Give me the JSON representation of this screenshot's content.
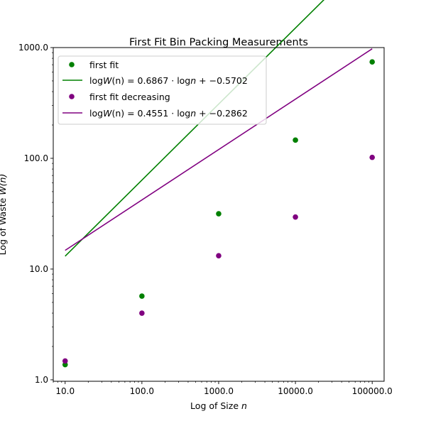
{
  "chart_data": {
    "type": "scatter",
    "title": "First Fit Bin Packing Measurements",
    "xlabel": "Log of Size n",
    "ylabel": "Log of Waste W(n)",
    "xscale": "log",
    "yscale": "log",
    "xlim": [
      7.0,
      143000
    ],
    "ylim": [
      0.97,
      1000
    ],
    "xticks": [
      10,
      100,
      1000,
      10000,
      100000
    ],
    "xtick_labels": [
      "10.0",
      "100.0",
      "1000.0",
      "10000.0",
      "100000.0"
    ],
    "yticks": [
      1,
      10,
      100,
      1000
    ],
    "ytick_labels": [
      "1.0",
      "10.0",
      "100.0",
      "1000.0"
    ],
    "grid": false,
    "legend_position": "top-left",
    "series": [
      {
        "name": "first fit",
        "kind": "points",
        "color": "#008000",
        "x": [
          10,
          100,
          1000,
          10000,
          100000
        ],
        "y": [
          1.37,
          5.7,
          31.6,
          146,
          742
        ]
      },
      {
        "name": "logW(n) = 0.6867 · logn + −0.5702",
        "legend_parts": {
          "lead": "log",
          "W": "W",
          "mid1": "(n) = 0.6867 · log",
          "n": "n",
          "tail": " + −0.5702"
        },
        "kind": "line",
        "color": "#008000",
        "slope": 0.6867,
        "intercept": -0.5702,
        "x_range": [
          10,
          100000
        ]
      },
      {
        "name": "first fit decreasing",
        "kind": "points",
        "color": "#800080",
        "x": [
          10,
          100,
          1000,
          10000,
          100000
        ],
        "y": [
          1.48,
          4.0,
          13.2,
          29.5,
          102
        ]
      },
      {
        "name": "logW(n) = 0.4551 · logn + −0.2862",
        "legend_parts": {
          "lead": "log",
          "W": "W",
          "mid1": "(n) = 0.4551 · log",
          "n": "n",
          "tail": " + −0.2862"
        },
        "kind": "line",
        "color": "#800080",
        "slope": 0.4551,
        "intercept": -0.2862,
        "x_range": [
          10,
          100000
        ]
      }
    ],
    "xlabel_parts": {
      "text": "Log of Size ",
      "var": "n"
    },
    "ylabel_parts": {
      "text": "Log of Waste ",
      "var": "W(n)"
    }
  }
}
